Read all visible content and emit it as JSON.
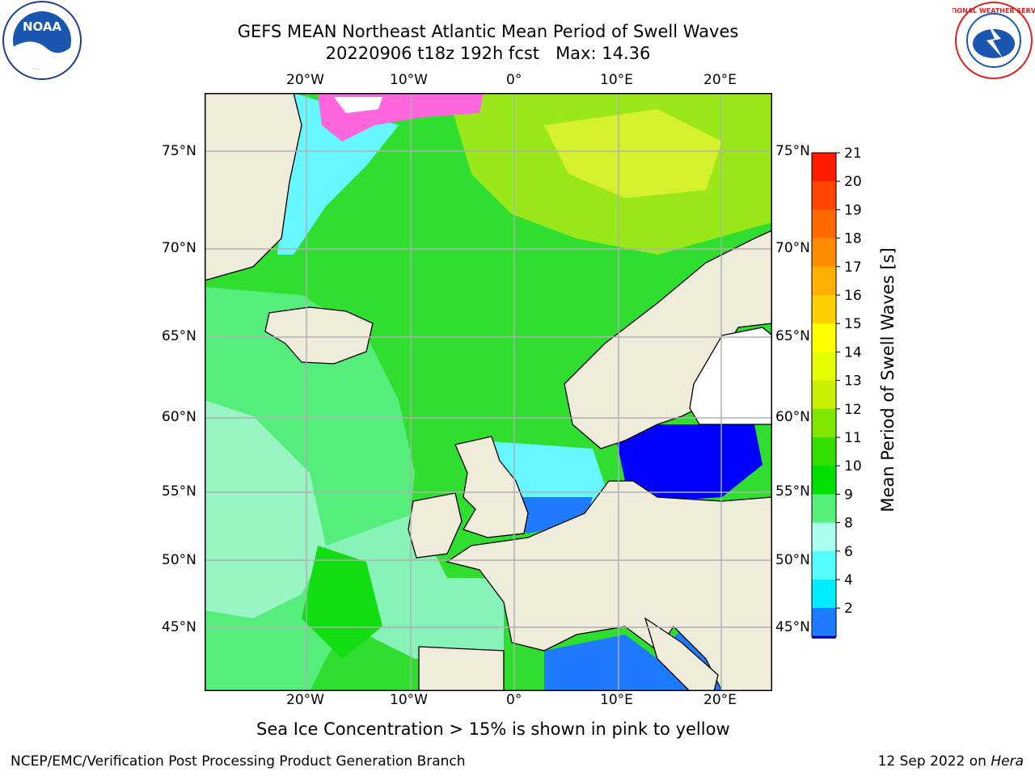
{
  "title_line1": "GEFS MEAN Northeast Atlantic Mean Period of Swell Waves",
  "title_line2": "20220906 t18z 192h fcst   Max: 14.36",
  "map": {
    "lon_ticks_top": [
      "20°W",
      "10°W",
      "0°",
      "10°E",
      "20°E"
    ],
    "lon_ticks_bottom": [
      "20°W",
      "10°W",
      "0°",
      "10°E",
      "20°E"
    ],
    "lat_ticks_left": [
      "75°N",
      "70°N",
      "65°N",
      "60°N",
      "55°N",
      "50°N",
      "45°N"
    ],
    "lat_ticks_right": [
      "75°N",
      "70°N",
      "65°N",
      "60°N",
      "55°N",
      "50°N",
      "45°N"
    ]
  },
  "colorbar": {
    "label": "Mean Period of Swell Waves [s]",
    "ticks": [
      "21",
      "20",
      "19",
      "18",
      "17",
      "16",
      "15",
      "14",
      "13",
      "12",
      "11",
      "10",
      "9",
      "8",
      "6",
      "4",
      "2"
    ],
    "colors": [
      "#ff1a00",
      "#ff4500",
      "#ff6a00",
      "#ff8c00",
      "#ffb000",
      "#ffd000",
      "#ffff00",
      "#e6ff00",
      "#c8f000",
      "#80e600",
      "#33dd00",
      "#00e000",
      "#55f07a",
      "#aaffee",
      "#55ffff",
      "#00eeff",
      "#1e7bff"
    ],
    "extend_color": "#0000ff"
  },
  "caption": "Sea Ice Concentration > 15% is shown in pink to yellow",
  "footer_left": "NCEP/EMC/Verification Post Processing Product Generation Branch",
  "footer_right_prefix": "12 Sep 2022 on ",
  "footer_right_host": "Hera",
  "logos": {
    "left": "NOAA",
    "right": "NATIONAL WEATHER SERVICE"
  },
  "colors": {
    "land": "#efecdc",
    "grid": "#b0b0b0",
    "ocean_main": "#33dd33"
  }
}
